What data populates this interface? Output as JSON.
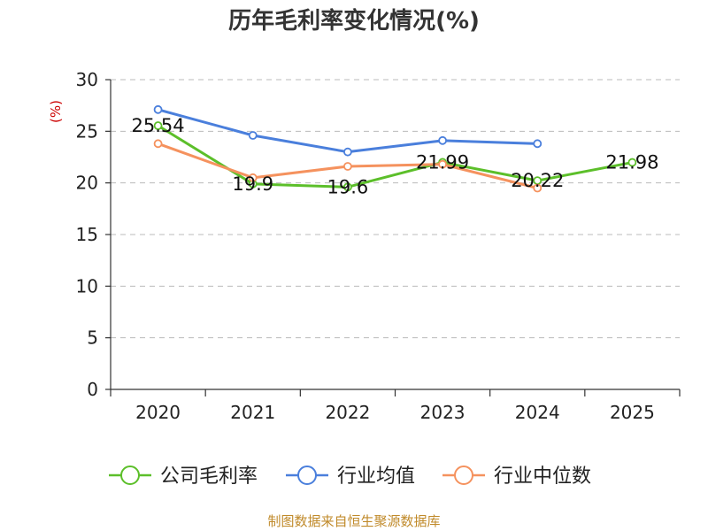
{
  "chart_data": {
    "type": "line",
    "title": "历年毛利率变化情况(%)",
    "ylabel": "(%)",
    "categories": [
      "2020",
      "2021",
      "2022",
      "2023",
      "2024",
      "2025"
    ],
    "ylim": [
      0,
      30
    ],
    "yticks": [
      0,
      5,
      10,
      15,
      20,
      25,
      30
    ],
    "grid": true,
    "legend_position": "bottom",
    "series": [
      {
        "name": "公司毛利率",
        "color": "#5cbf2a",
        "values": [
          25.54,
          19.9,
          19.6,
          21.99,
          20.22,
          21.98
        ],
        "labels": [
          "25.54",
          "19.9",
          "19.6",
          "21.99",
          "20.22",
          "21.98"
        ]
      },
      {
        "name": "行业均值",
        "color": "#4a7fdc",
        "values": [
          27.1,
          24.6,
          23.0,
          24.1,
          23.8,
          null
        ]
      },
      {
        "name": "行业中位数",
        "color": "#f5925e",
        "values": [
          23.8,
          20.5,
          21.6,
          21.8,
          19.5,
          null
        ]
      }
    ]
  },
  "footer": {
    "source": "制图数据来自恒生聚源数据库"
  }
}
